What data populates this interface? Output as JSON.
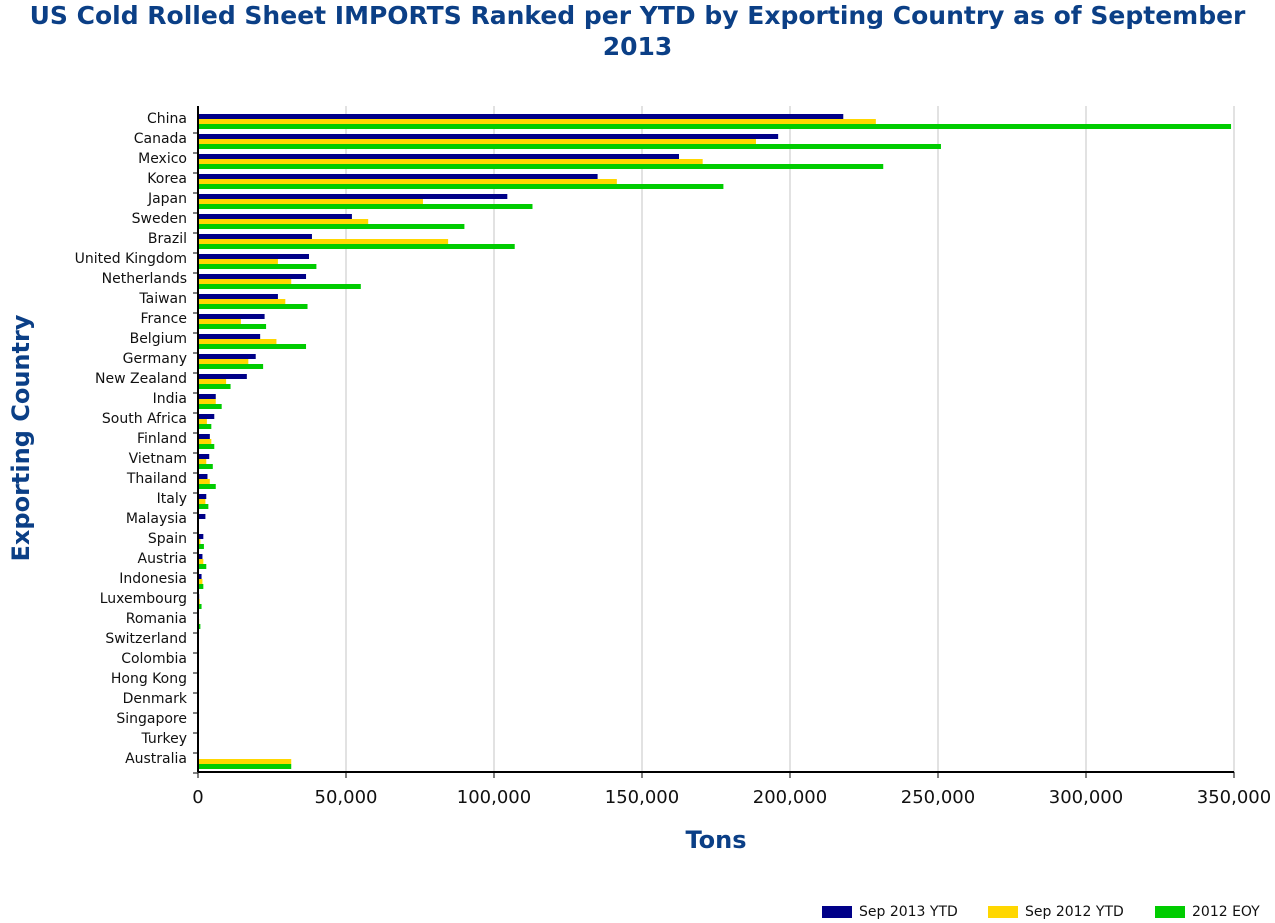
{
  "chart_data": {
    "type": "bar",
    "orientation": "horizontal",
    "title": "US Cold Rolled Sheet IMPORTS Ranked per YTD by Exporting Country as of September 2013",
    "title_lines": [
      "US Cold Rolled Sheet IMPORTS Ranked per YTD by Exporting Country as of September",
      "2013"
    ],
    "xlabel": "Tons",
    "ylabel": "Exporting Country",
    "xlim": [
      0,
      350000
    ],
    "xticks": [
      "0",
      "50,000",
      "100,000",
      "150,000",
      "200,000",
      "250,000",
      "300,000",
      "350,000"
    ],
    "grid": true,
    "legend_position": "bottom-right",
    "categories": [
      "China",
      "Canada",
      "Mexico",
      "Korea",
      "Japan",
      "Sweden",
      "Brazil",
      "United Kingdom",
      "Netherlands",
      "Taiwan",
      "France",
      "Belgium",
      "Germany",
      "New Zealand",
      "India",
      "South Africa",
      "Finland",
      "Vietnam",
      "Thailand",
      "Italy",
      "Malaysia",
      "Spain",
      "Austria",
      "Indonesia",
      "Luxembourg",
      "Romania",
      "Switzerland",
      "Colombia",
      "Hong Kong",
      "Denmark",
      "Singapore",
      "Turkey",
      "Australia"
    ],
    "series": [
      {
        "name": "Sep 2013 YTD",
        "color": "#000088",
        "values": [
          218000,
          196000,
          162500,
          135000,
          104500,
          52000,
          38500,
          37500,
          36500,
          27000,
          22500,
          21000,
          19500,
          16500,
          6000,
          5500,
          4000,
          3800,
          3200,
          2800,
          2500,
          1800,
          1500,
          1200,
          400,
          300,
          150,
          100,
          100,
          80,
          60,
          50,
          0
        ]
      },
      {
        "name": "Sep 2012 YTD",
        "color": "#ffd700",
        "values": [
          229000,
          188500,
          170500,
          141500,
          76000,
          57500,
          84500,
          27000,
          31500,
          29500,
          14500,
          26500,
          17000,
          9500,
          6000,
          3000,
          4500,
          2800,
          4000,
          2500,
          0,
          800,
          1800,
          1500,
          600,
          400,
          100,
          100,
          80,
          50,
          50,
          50,
          31500
        ]
      },
      {
        "name": "2012 EOY",
        "color": "#00cc00",
        "values": [
          349000,
          251000,
          231500,
          177500,
          113000,
          90000,
          107000,
          40000,
          55000,
          37000,
          23000,
          36500,
          22000,
          11000,
          8000,
          4500,
          5500,
          5000,
          6000,
          3500,
          0,
          2000,
          2800,
          1800,
          1200,
          800,
          100,
          100,
          80,
          50,
          50,
          50,
          31500
        ]
      }
    ]
  }
}
